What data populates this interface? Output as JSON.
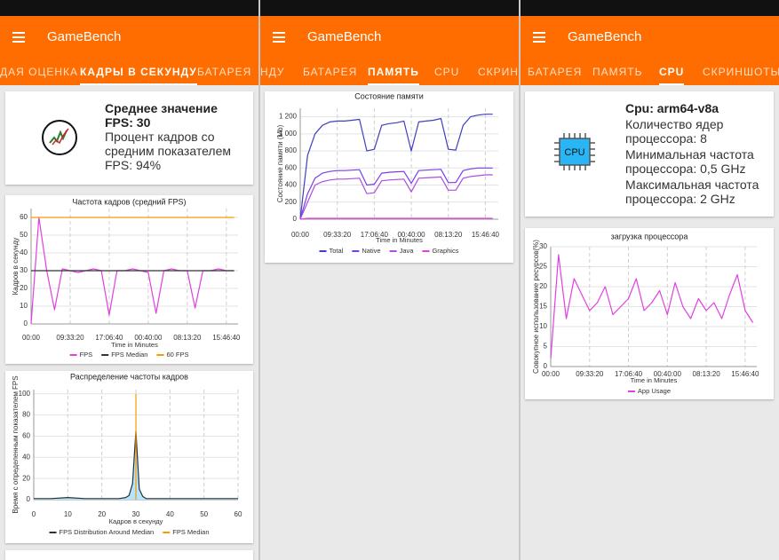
{
  "screens": [
    {
      "app_title": "GameBench",
      "tabs": [
        "ДАЯ ОЦЕНКА",
        "КАДРЫ В СЕКУНДУ",
        "БАТАРЕЯ"
      ],
      "active_tab": 1,
      "summary": {
        "heading": "Среднее значение FPS: 30",
        "lines": [
          "Процент кадров со средним показателем FPS: 94%"
        ]
      }
    },
    {
      "app_title": "GameBench",
      "tabs": [
        "НДУ",
        "БАТАРЕЯ",
        "ПАМЯТЬ",
        "CPU",
        "СКРИНШОТЫ"
      ],
      "active_tab": 2
    },
    {
      "app_title": "GameBench",
      "tabs": [
        "БАТАРЕЯ",
        "ПАМЯТЬ",
        "CPU",
        "СКРИНШОТЫ"
      ],
      "active_tab": 2,
      "summary": {
        "icon_label": "CPU",
        "heading": "Cpu: arm64-v8a",
        "lines": [
          "Количество ядер процессора: 8",
          "Минимальная частота процессора: 0,5 GHz",
          "Максимальная частота процессора: 2 GHz"
        ]
      }
    }
  ],
  "chart_data": [
    {
      "type": "line",
      "title": "Частота кадров (средний FPS)",
      "y_label": "Кадров в секунду",
      "x_label": "Time in Minutes",
      "x": [
        0,
        0.2,
        0.4,
        0.6,
        0.8,
        1,
        1.2,
        1.4,
        1.6,
        1.8,
        2,
        2.2,
        2.4,
        2.6,
        2.8,
        3,
        3.2,
        3.4,
        3.6,
        3.8,
        4,
        4.2,
        4.4,
        4.6,
        4.8,
        5,
        5.2
      ],
      "xlim": [
        0,
        5.3
      ],
      "xticks": [
        {
          "value": 0,
          "label": "00:00"
        },
        {
          "value": 1,
          "label": "09:33:20"
        },
        {
          "value": 2,
          "label": "17:06:40"
        },
        {
          "value": 3,
          "label": "00:40:00"
        },
        {
          "value": 4,
          "label": "08:13:20"
        },
        {
          "value": 5,
          "label": "15:46:40"
        }
      ],
      "ylim": [
        0,
        65
      ],
      "yticks": [
        0,
        10,
        20,
        30,
        40,
        50,
        60
      ],
      "grid": true,
      "series": [
        {
          "name": "FPS",
          "color": "#e040e0",
          "values": [
            0,
            60,
            30,
            8,
            31,
            30,
            29,
            30,
            31,
            30,
            5,
            30,
            30,
            31,
            30,
            29,
            6,
            30,
            31,
            30,
            30,
            9,
            30,
            30,
            31,
            30,
            30
          ]
        },
        {
          "name": "FPS Median",
          "color": "#333333",
          "values": [
            30,
            30,
            30,
            30,
            30,
            30,
            30,
            30,
            30,
            30,
            30,
            30,
            30,
            30,
            30,
            30,
            30,
            30,
            30,
            30,
            30,
            30,
            30,
            30,
            30,
            30,
            30
          ]
        },
        {
          "name": "60 FPS",
          "color": "#ff9800",
          "values": [
            60,
            60,
            60,
            60,
            60,
            60,
            60,
            60,
            60,
            60,
            60,
            60,
            60,
            60,
            60,
            60,
            60,
            60,
            60,
            60,
            60,
            60,
            60,
            60,
            60,
            60,
            60
          ]
        }
      ]
    },
    {
      "type": "area",
      "title": "Распределение частоты кадров",
      "y_label": "Время с определенным показателем FPS",
      "x_label": "Кадров в секунду",
      "xlim": [
        0,
        60
      ],
      "xticks": [
        0,
        10,
        20,
        30,
        40,
        50,
        60
      ],
      "ylim": [
        0,
        104
      ],
      "yticks": [
        0,
        20,
        40,
        60,
        80,
        100
      ],
      "grid": true,
      "series": [
        {
          "name": "FPS Distribution Around Median",
          "color": "#263238",
          "fill": "#b3e5fc",
          "x": [
            0,
            5,
            10,
            15,
            20,
            25,
            27,
            28,
            29,
            30,
            31,
            32,
            33,
            35,
            40,
            45,
            50,
            55,
            60
          ],
          "values": [
            1,
            1,
            2,
            1,
            1,
            1,
            2,
            4,
            15,
            65,
            10,
            3,
            1,
            1,
            1,
            1,
            1,
            1,
            1
          ]
        },
        {
          "name": "FPS Median",
          "color": "#ff9800",
          "x": [
            30,
            30
          ],
          "values": [
            0,
            100
          ]
        }
      ]
    },
    {
      "type": "line",
      "title": "Состояние памяти",
      "y_label": "Состояние памяти (Mb)",
      "x_label": "Time in Minutes",
      "x": [
        0,
        0.2,
        0.4,
        0.6,
        0.8,
        1,
        1.2,
        1.4,
        1.6,
        1.8,
        2,
        2.2,
        2.4,
        2.6,
        2.8,
        3,
        3.2,
        3.4,
        3.6,
        3.8,
        4,
        4.2,
        4.4,
        4.6,
        4.8,
        5,
        5.2
      ],
      "xlim": [
        0,
        5.35
      ],
      "xticks": [
        {
          "value": 0,
          "label": "00:00"
        },
        {
          "value": 1,
          "label": "09:33:20"
        },
        {
          "value": 2,
          "label": "17:06:40"
        },
        {
          "value": 3,
          "label": "00:40:00"
        },
        {
          "value": 4,
          "label": "08:13:20"
        },
        {
          "value": 5,
          "label": "15:46:40"
        }
      ],
      "ylim": [
        0,
        1300
      ],
      "yticks": [
        0,
        200,
        400,
        600,
        800,
        {
          "value": 1000,
          "label": "1 000"
        },
        {
          "value": 1200,
          "label": "1 200"
        }
      ],
      "grid": true,
      "series": [
        {
          "name": "Total",
          "color": "#3f3fbf",
          "values": [
            0,
            750,
            1000,
            1100,
            1140,
            1150,
            1150,
            1160,
            1170,
            800,
            820,
            1100,
            1120,
            1130,
            1150,
            800,
            1140,
            1150,
            1160,
            1180,
            820,
            810,
            1100,
            1200,
            1220,
            1230,
            1230
          ]
        },
        {
          "name": "Native",
          "color": "#7a3de8",
          "values": [
            0,
            300,
            480,
            540,
            560,
            570,
            570,
            575,
            580,
            400,
            410,
            540,
            550,
            555,
            560,
            420,
            570,
            575,
            580,
            585,
            430,
            430,
            570,
            590,
            600,
            600,
            600
          ]
        },
        {
          "name": "Java",
          "color": "#b04be0",
          "values": [
            0,
            200,
            400,
            440,
            460,
            470,
            470,
            475,
            480,
            300,
            310,
            450,
            460,
            465,
            470,
            320,
            480,
            485,
            490,
            495,
            340,
            340,
            480,
            500,
            510,
            520,
            520
          ]
        },
        {
          "name": "Graphics",
          "color": "#e040e0",
          "values": [
            0,
            10,
            10,
            10,
            10,
            10,
            10,
            10,
            10,
            10,
            10,
            10,
            10,
            10,
            10,
            10,
            10,
            10,
            10,
            10,
            10,
            10,
            10,
            10,
            10,
            10,
            10
          ]
        }
      ]
    },
    {
      "type": "line",
      "title": "загрузка процессора",
      "y_label": "Совокупное использование ресурсов(%)",
      "x_label": "Time in Minutes",
      "x": [
        0,
        0.2,
        0.4,
        0.6,
        0.8,
        1,
        1.2,
        1.4,
        1.6,
        1.8,
        2,
        2.2,
        2.4,
        2.6,
        2.8,
        3,
        3.2,
        3.4,
        3.6,
        3.8,
        4,
        4.2,
        4.4,
        4.6,
        4.8,
        5,
        5.2
      ],
      "xlim": [
        0,
        5.3
      ],
      "xticks": [
        {
          "value": 0,
          "label": "00:00"
        },
        {
          "value": 1,
          "label": "09:33:20"
        },
        {
          "value": 2,
          "label": "17:06:40"
        },
        {
          "value": 3,
          "label": "00:40:00"
        },
        {
          "value": 4,
          "label": "08:13:20"
        },
        {
          "value": 5,
          "label": "15:46:40"
        }
      ],
      "ylim": [
        0,
        30
      ],
      "yticks": [
        0,
        5,
        10,
        15,
        20,
        25,
        30
      ],
      "grid": true,
      "series": [
        {
          "name": "App Usage",
          "color": "#e040e0",
          "values": [
            2,
            28,
            12,
            22,
            18,
            14,
            16,
            20,
            13,
            15,
            17,
            22,
            14,
            16,
            19,
            13,
            21,
            15,
            12,
            17,
            14,
            16,
            12,
            18,
            23,
            14,
            11
          ]
        }
      ]
    }
  ]
}
